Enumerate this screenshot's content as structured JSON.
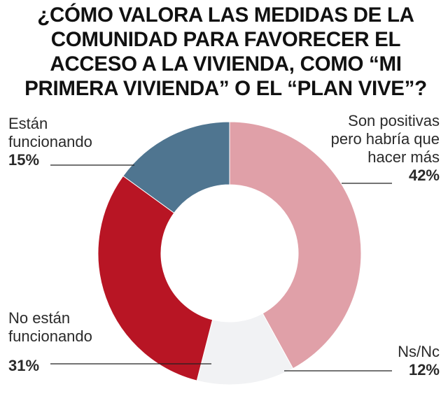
{
  "title": "¿Cómo valora las medidas de la Comunidad para favorecer el acceso a la vivienda, como “Mi Primera Vivienda” o el “Plan Vive”?",
  "chart_data": {
    "type": "pie",
    "donut": true,
    "title": "¿Cómo valora las medidas de la Comunidad para favorecer el acceso a la vivienda, como “Mi Primera Vivienda” o el “Plan Vive”?",
    "slices": [
      {
        "label": "Son positivas pero habría que hacer más",
        "value": 42,
        "value_label": "42%",
        "color": "#e0a0a8"
      },
      {
        "label": "Ns/Nc",
        "value": 12,
        "value_label": "12%",
        "color": "#f1f2f4"
      },
      {
        "label": "No están funcionando",
        "value": 31,
        "value_label": "31%",
        "color": "#b81524"
      },
      {
        "label": "Están funcionando",
        "value": 15,
        "value_label": "15%",
        "color": "#4f7590"
      }
    ]
  },
  "labels": {
    "positivas": {
      "line1": "Son positivas",
      "line2": "pero habría que",
      "line3": "hacer más",
      "pct": "42%"
    },
    "nsnc": {
      "line1": "Ns/Nc",
      "pct": "12%"
    },
    "no_funcionando": {
      "line1": "No están",
      "line2": "funcionando",
      "pct": "31%"
    },
    "funcionando": {
      "line1": "Están",
      "line2": "funcionando",
      "pct": "15%"
    }
  }
}
